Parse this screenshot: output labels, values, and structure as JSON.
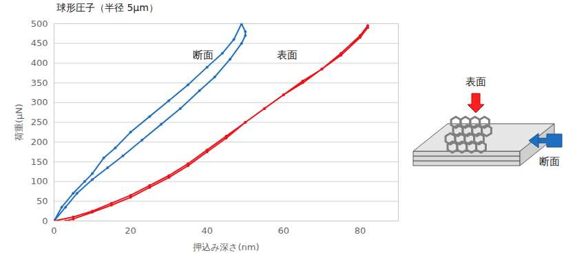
{
  "chart_data": {
    "type": "line",
    "title": "球形圧子（半径 5μm）",
    "xlabel": "押込み深さ(nm)",
    "ylabel": "荷重(μN)",
    "xlim": [
      0,
      90
    ],
    "xticks": [
      0,
      20,
      40,
      60,
      80
    ],
    "ylim": [
      0,
      500
    ],
    "yticks": [
      0,
      50,
      100,
      150,
      200,
      250,
      300,
      350,
      400,
      450,
      500
    ],
    "grid": "y",
    "marker": "circle",
    "series": [
      {
        "name": "断面",
        "color": "#1f6fc0",
        "x": [
          0,
          2,
          5,
          8,
          10,
          13,
          16,
          20,
          25,
          30,
          35,
          40,
          44,
          47,
          49,
          50,
          50,
          49,
          46,
          42,
          38,
          33,
          28,
          23,
          18,
          14,
          10,
          6,
          3,
          0
        ],
        "values": [
          0,
          35,
          70,
          100,
          120,
          160,
          185,
          225,
          265,
          305,
          345,
          390,
          425,
          460,
          500,
          480,
          470,
          450,
          410,
          365,
          330,
          285,
          245,
          205,
          165,
          135,
          105,
          70,
          35,
          0
        ]
      },
      {
        "name": "表面",
        "color": "#e8141a",
        "x": [
          0,
          5,
          10,
          15,
          20,
          25,
          30,
          35,
          40,
          45,
          50,
          55,
          60,
          65,
          70,
          75,
          80,
          82,
          82,
          80,
          75,
          70,
          65,
          60,
          55,
          50,
          45,
          40,
          35,
          30,
          25,
          20,
          15,
          10,
          5,
          3
        ],
        "values": [
          0,
          10,
          25,
          45,
          65,
          90,
          115,
          145,
          180,
          215,
          250,
          285,
          320,
          350,
          385,
          425,
          470,
          495,
          490,
          465,
          420,
          385,
          355,
          320,
          285,
          250,
          210,
          175,
          140,
          110,
          85,
          60,
          40,
          22,
          5,
          0
        ]
      }
    ],
    "annotations": [
      {
        "text": "断面",
        "x": 39,
        "y": 420
      },
      {
        "text": "表面",
        "x": 61,
        "y": 420
      }
    ],
    "diagram": {
      "top_label": "表面",
      "side_label": "断面"
    }
  }
}
